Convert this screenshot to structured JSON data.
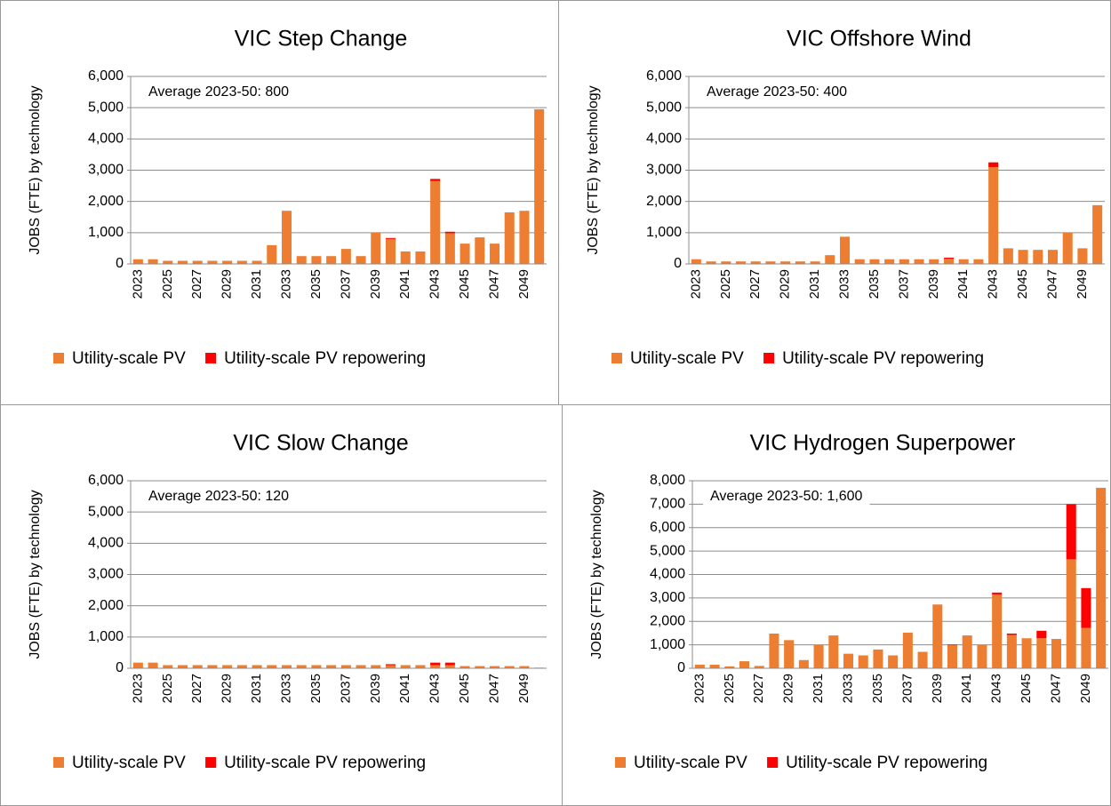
{
  "chart_data": [
    {
      "type": "bar",
      "stacked": true,
      "title": "VIC Step Change",
      "annotation": "Average 2023-50: 800",
      "y_label": "JOBS (FTE) by technology",
      "categories": [
        "2023",
        null,
        "2025",
        null,
        "2027",
        null,
        "2029",
        null,
        "2031",
        null,
        "2033",
        null,
        "2035",
        null,
        "2037",
        null,
        "2039",
        null,
        "2041",
        null,
        "2043",
        null,
        "2045",
        null,
        "2047",
        null,
        "2049",
        null
      ],
      "series": [
        {
          "name": "Utility-scale PV",
          "color": "#ED7D31",
          "values": [
            150,
            150,
            100,
            100,
            100,
            100,
            100,
            100,
            100,
            600,
            1700,
            250,
            250,
            250,
            480,
            250,
            1000,
            800,
            400,
            400,
            2650,
            980,
            650,
            850,
            650,
            1650,
            1700,
            4950
          ]
        },
        {
          "name": "Utility-scale PV repowering",
          "color": "#FF0000",
          "values": [
            0,
            0,
            0,
            0,
            0,
            0,
            0,
            0,
            0,
            0,
            0,
            0,
            0,
            0,
            0,
            0,
            0,
            30,
            0,
            0,
            70,
            50,
            0,
            0,
            0,
            0,
            0,
            0
          ]
        }
      ],
      "ylim": [
        0,
        6000
      ],
      "yticks": [
        0,
        {
          "value": 1000,
          "label": "1,000"
        },
        {
          "value": 2000,
          "label": "2,000"
        },
        {
          "value": 3000,
          "label": "3,000"
        },
        {
          "value": 4000,
          "label": "4,000"
        },
        {
          "value": 5000,
          "label": "5,000"
        },
        {
          "value": 6000,
          "label": "6,000"
        }
      ],
      "grid": true,
      "legend": "bottom",
      "ytick_color": "#000000"
    },
    {
      "type": "bar",
      "stacked": true,
      "title": "VIC Offshore Wind",
      "annotation": "Average 2023-50: 400",
      "y_label": "JOBS (FTE) by technology",
      "categories": [
        "2023",
        null,
        "2025",
        null,
        "2027",
        null,
        "2029",
        null,
        "2031",
        null,
        "2033",
        null,
        "2035",
        null,
        "2037",
        null,
        "2039",
        null,
        "2041",
        null,
        "2043",
        null,
        "2045",
        null,
        "2047",
        null,
        "2049",
        null
      ],
      "series": [
        {
          "name": "Utility-scale PV",
          "color": "#ED7D31",
          "values": [
            150,
            80,
            80,
            80,
            80,
            80,
            80,
            80,
            80,
            280,
            870,
            150,
            150,
            150,
            150,
            150,
            150,
            170,
            150,
            150,
            3100,
            500,
            450,
            450,
            450,
            1000,
            500,
            1880
          ]
        },
        {
          "name": "Utility-scale PV repowering",
          "color": "#FF0000",
          "values": [
            0,
            0,
            0,
            0,
            0,
            0,
            0,
            0,
            0,
            0,
            0,
            0,
            0,
            0,
            0,
            0,
            0,
            30,
            0,
            0,
            150,
            0,
            0,
            0,
            0,
            0,
            0,
            0
          ]
        }
      ],
      "ylim": [
        0,
        6000
      ],
      "yticks": [
        0,
        {
          "value": 1000,
          "label": "1,000"
        },
        {
          "value": 2000,
          "label": "2,000"
        },
        {
          "value": 3000,
          "label": "3,000"
        },
        {
          "value": 4000,
          "label": "4,000"
        },
        {
          "value": 5000,
          "label": "5,000"
        },
        {
          "value": 6000,
          "label": "6,000"
        }
      ],
      "grid": true,
      "legend": "bottom",
      "ytick_color": "#000000"
    },
    {
      "type": "bar",
      "stacked": true,
      "title": "VIC Slow Change",
      "annotation": "Average 2023-50: 120",
      "y_label": "JOBS (FTE) by technology",
      "categories": [
        "2023",
        null,
        "2025",
        null,
        "2027",
        null,
        "2029",
        null,
        "2031",
        null,
        "2033",
        null,
        "2035",
        null,
        "2037",
        null,
        "2039",
        null,
        "2041",
        null,
        "2043",
        null,
        "2045",
        null,
        "2047",
        null,
        "2049",
        null
      ],
      "series": [
        {
          "name": "Utility-scale PV",
          "color": "#ED7D31",
          "values": [
            180,
            180,
            100,
            100,
            100,
            100,
            100,
            100,
            100,
            100,
            100,
            100,
            100,
            100,
            100,
            100,
            100,
            100,
            100,
            100,
            100,
            100,
            70,
            70,
            70,
            70,
            70,
            20
          ]
        },
        {
          "name": "Utility-scale PV repowering",
          "color": "#FF0000",
          "values": [
            0,
            0,
            0,
            0,
            0,
            0,
            0,
            0,
            0,
            0,
            0,
            0,
            0,
            0,
            0,
            0,
            0,
            30,
            0,
            0,
            80,
            80,
            0,
            0,
            0,
            0,
            0,
            0
          ]
        }
      ],
      "ylim": [
        0,
        6000
      ],
      "yticks": [
        0,
        {
          "value": 1000,
          "label": "1,000"
        },
        {
          "value": 2000,
          "label": "2,000"
        },
        {
          "value": 3000,
          "label": "3,000"
        },
        {
          "value": 4000,
          "label": "4,000"
        },
        {
          "value": 5000,
          "label": "5,000"
        },
        {
          "value": 6000,
          "label": "6,000"
        }
      ],
      "grid": true,
      "legend": "bottom",
      "ytick_color": "#000000"
    },
    {
      "type": "bar",
      "stacked": true,
      "title": "VIC Hydrogen Superpower",
      "annotation": "Average 2023-50: 1,600",
      "y_label": "JOBS (FTE) by technology",
      "categories": [
        "2023",
        null,
        "2025",
        null,
        "2027",
        null,
        "2029",
        null,
        "2031",
        null,
        "2033",
        null,
        "2035",
        null,
        "2037",
        null,
        "2039",
        null,
        "2041",
        null,
        "2043",
        null,
        "2045",
        null,
        "2047",
        null,
        "2049",
        null
      ],
      "series": [
        {
          "name": "Utility-scale PV",
          "color": "#ED7D31",
          "values": [
            150,
            150,
            80,
            300,
            100,
            1480,
            1200,
            350,
            1000,
            1400,
            620,
            550,
            800,
            550,
            1520,
            700,
            2720,
            980,
            1400,
            1000,
            3150,
            1420,
            1280,
            1280,
            1250,
            4650,
            1720,
            7700
          ]
        },
        {
          "name": "Utility-scale PV repowering",
          "color": "#FF0000",
          "values": [
            0,
            0,
            0,
            0,
            0,
            0,
            0,
            0,
            0,
            0,
            0,
            0,
            0,
            0,
            0,
            0,
            0,
            30,
            0,
            0,
            80,
            60,
            0,
            320,
            0,
            2350,
            1700,
            0
          ]
        }
      ],
      "ylim": [
        0,
        8000
      ],
      "yticks": [
        0,
        {
          "value": 1000,
          "label": "1,000"
        },
        {
          "value": 2000,
          "label": "2,000"
        },
        {
          "value": 3000,
          "label": "3,000"
        },
        {
          "value": 4000,
          "label": "4,000"
        },
        {
          "value": 5000,
          "label": "5,000"
        },
        {
          "value": 6000,
          "label": "6,000"
        },
        {
          "value": 7000,
          "label": "7,000"
        },
        {
          "value": 8000,
          "label": "8,000"
        }
      ],
      "grid": true,
      "legend": "bottom",
      "ytick_color": "#FF0000"
    }
  ]
}
